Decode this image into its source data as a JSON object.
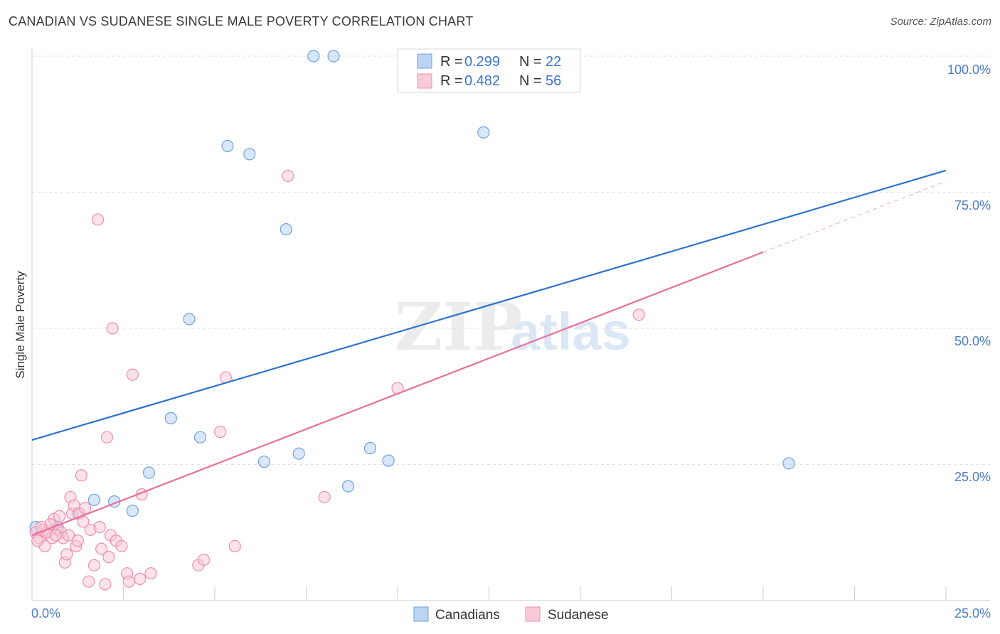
{
  "header": {
    "title": "CANADIAN VS SUDANESE SINGLE MALE POVERTY CORRELATION CHART",
    "source": "Source: ZipAtlas.com"
  },
  "watermark": {
    "zip": "ZIP",
    "atlas": "atlas"
  },
  "chart_data": {
    "type": "scatter",
    "title": "CANADIAN VS SUDANESE SINGLE MALE POVERTY CORRELATION CHART",
    "xlabel": "",
    "ylabel": "Single Male Poverty",
    "xlim": [
      0,
      25
    ],
    "ylim": [
      0,
      100
    ],
    "x_tick_labels": [
      {
        "value": 0,
        "label": "0.0%"
      },
      {
        "value": 25,
        "label": "25.0%"
      }
    ],
    "y_tick_labels": [
      {
        "value": 25,
        "label": "25.0%"
      },
      {
        "value": 50,
        "label": "50.0%"
      },
      {
        "value": 75,
        "label": "75.0%"
      },
      {
        "value": 100,
        "label": "100.0%"
      }
    ],
    "legend": {
      "placement": "top-center",
      "entries": [
        {
          "r_label": "R =",
          "r_value": "0.299",
          "n_label": "N =",
          "n_value": "22"
        },
        {
          "r_label": "R =",
          "r_value": "0.482",
          "n_label": "N =",
          "n_value": "56"
        }
      ]
    },
    "bottom_legend": [
      "Canadians",
      "Sudanese"
    ],
    "series": [
      {
        "name": "Canadians",
        "color": "#6fa1e3",
        "fill": "#bcd4f4",
        "line_color": "#2f72cf",
        "trend": {
          "x0": 0,
          "y0": 29.5,
          "x1": 25,
          "y1": 79
        },
        "points": [
          [
            0.1,
            13.5
          ],
          [
            0.7,
            13.5
          ],
          [
            1.25,
            16
          ],
          [
            1.7,
            18.5
          ],
          [
            2.25,
            18.2
          ],
          [
            2.75,
            16.5
          ],
          [
            3.2,
            23.5
          ],
          [
            3.8,
            33.5
          ],
          [
            4.3,
            51.7
          ],
          [
            4.6,
            30
          ],
          [
            5.35,
            83.5
          ],
          [
            5.95,
            82
          ],
          [
            6.35,
            25.5
          ],
          [
            6.95,
            68.2
          ],
          [
            7.3,
            27
          ],
          [
            7.7,
            100
          ],
          [
            8.25,
            100
          ],
          [
            8.65,
            21
          ],
          [
            9.25,
            28
          ],
          [
            9.75,
            25.7
          ],
          [
            12.35,
            86
          ],
          [
            20.7,
            25.2
          ]
        ]
      },
      {
        "name": "Sudanese",
        "color": "#ee8fac",
        "fill": "#f9cbd9",
        "line_color": "#e8709a",
        "trend": {
          "x0": 0,
          "y0": 12,
          "x1": 20,
          "y1": 64
        },
        "trend_dashed": {
          "x0": 20,
          "y0": 64,
          "x1": 25,
          "y1": 77
        },
        "points": [
          [
            0.1,
            12.5
          ],
          [
            0.2,
            11.5
          ],
          [
            0.3,
            13
          ],
          [
            0.35,
            10
          ],
          [
            0.45,
            12.8
          ],
          [
            0.55,
            11.5
          ],
          [
            0.6,
            15
          ],
          [
            0.7,
            13
          ],
          [
            0.8,
            12.5
          ],
          [
            0.85,
            11.5
          ],
          [
            0.9,
            7
          ],
          [
            0.95,
            8.5
          ],
          [
            1.0,
            12
          ],
          [
            1.05,
            19
          ],
          [
            1.1,
            16
          ],
          [
            1.15,
            17.5
          ],
          [
            1.2,
            10
          ],
          [
            1.25,
            11
          ],
          [
            1.3,
            16
          ],
          [
            1.35,
            23
          ],
          [
            1.4,
            14.5
          ],
          [
            1.45,
            17
          ],
          [
            1.55,
            3.5
          ],
          [
            1.6,
            13
          ],
          [
            1.7,
            6.5
          ],
          [
            1.8,
            70
          ],
          [
            1.85,
            13.5
          ],
          [
            1.9,
            9.5
          ],
          [
            2.0,
            3
          ],
          [
            2.05,
            30
          ],
          [
            2.1,
            8
          ],
          [
            2.15,
            12
          ],
          [
            2.2,
            50
          ],
          [
            2.3,
            11
          ],
          [
            2.45,
            10
          ],
          [
            2.6,
            5
          ],
          [
            2.65,
            3.5
          ],
          [
            2.75,
            41.5
          ],
          [
            2.95,
            4
          ],
          [
            3.0,
            19.5
          ],
          [
            3.25,
            5
          ],
          [
            4.55,
            6.5
          ],
          [
            4.7,
            7.5
          ],
          [
            5.15,
            31
          ],
          [
            5.3,
            41
          ],
          [
            5.55,
            10
          ],
          [
            7.0,
            78
          ],
          [
            8.0,
            19
          ],
          [
            10.0,
            39
          ],
          [
            16.6,
            52.5
          ],
          [
            0.4,
            12.5
          ],
          [
            0.5,
            14
          ],
          [
            0.15,
            11
          ],
          [
            0.25,
            13.5
          ],
          [
            0.65,
            12
          ],
          [
            0.75,
            15.5
          ]
        ]
      }
    ]
  }
}
